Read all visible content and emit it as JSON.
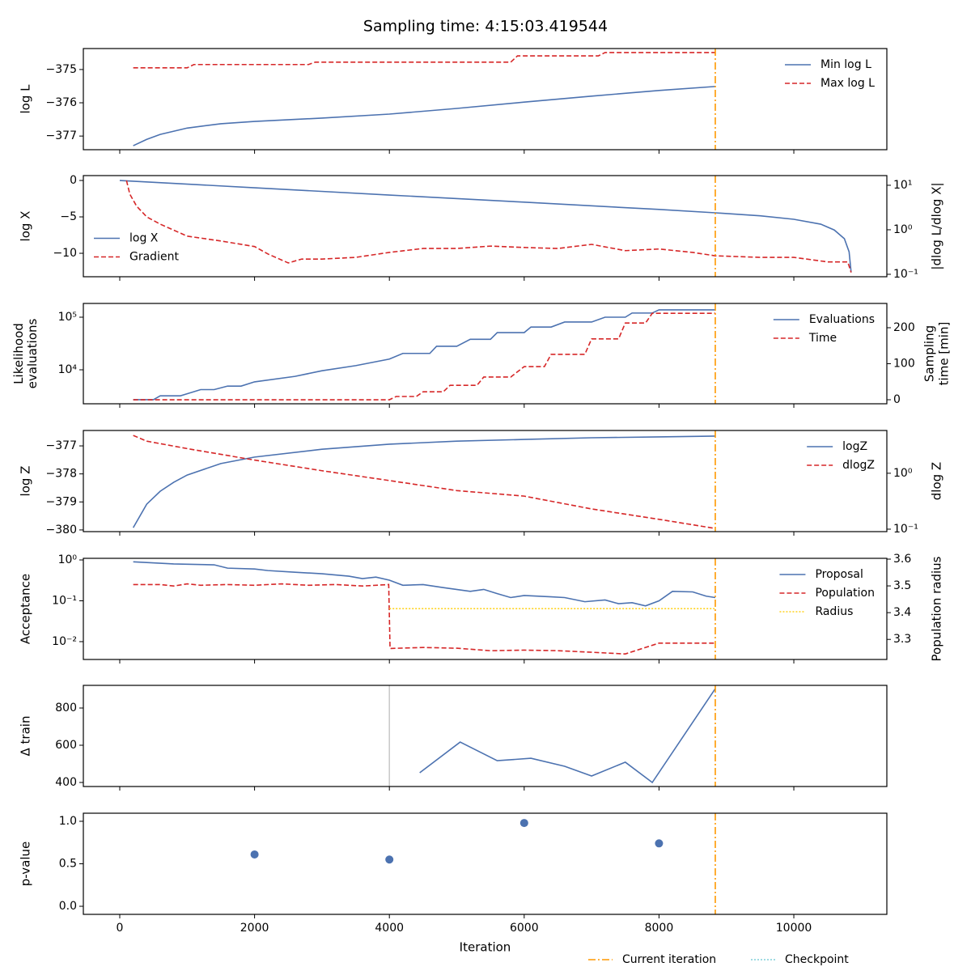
{
  "title": "Sampling time: 4:15:03.419544",
  "current_iteration": 8835,
  "legend": [
    {
      "name": "Current iteration",
      "color": "#ff9900",
      "style": "dashdot"
    },
    {
      "name": "Checkpoint",
      "color": "#7fcfd8",
      "style": "dotted"
    }
  ],
  "chart_data": [
    {
      "type": "line",
      "ylabel": [
        "log L"
      ],
      "xlim": [
        -540,
        11380
      ],
      "xticks": [
        0,
        2000,
        4000,
        6000,
        8000,
        10000
      ],
      "ylim": [
        -377.41,
        -374.37
      ],
      "yticks": [
        {
          "value": -377,
          "label": "−377"
        },
        {
          "value": -376,
          "label": "−376"
        },
        {
          "value": -375,
          "label": "−375"
        }
      ],
      "legend": "upper right",
      "series": [
        {
          "name": "Min log L",
          "color": "#4c72b0",
          "style": "solid",
          "x": [
            200,
            400,
            600,
            1000,
            1500,
            2000,
            3000,
            4000,
            5000,
            6000,
            7000,
            8000,
            8835
          ],
          "values": [
            -377.29,
            -377.1,
            -376.95,
            -376.76,
            -376.63,
            -376.56,
            -376.46,
            -376.34,
            -376.17,
            -375.98,
            -375.8,
            -375.63,
            -375.51
          ]
        },
        {
          "name": "Max log L",
          "color": "#d62728",
          "style": "dashed",
          "x": [
            200,
            1000,
            1100,
            2800,
            2900,
            5800,
            5900,
            7100,
            7200,
            8835
          ],
          "values": [
            -374.95,
            -374.95,
            -374.85,
            -374.85,
            -374.78,
            -374.78,
            -374.59,
            -374.59,
            -374.49,
            -374.49
          ]
        }
      ]
    },
    {
      "type": "line",
      "ylabel": [
        "log X"
      ],
      "y2label": [
        "|dlog L/dlog X|"
      ],
      "xlim": [
        -540,
        11380
      ],
      "xticks": [
        0,
        2000,
        4000,
        6000,
        8000,
        10000
      ],
      "ylim": [
        -13.22,
        0.67
      ],
      "yticks": [
        {
          "value": -10,
          "label": "−10"
        },
        {
          "value": -5,
          "label": "−5"
        },
        0
      ],
      "y2log": true,
      "y2lim": [
        0.0881,
        16.5
      ],
      "y2ticks": [
        {
          "value": 0.1,
          "label": "10⁻¹"
        },
        {
          "value": 1,
          "label": "10⁰"
        },
        {
          "value": 10,
          "label": "10¹"
        }
      ],
      "legend": "center left",
      "series": [
        {
          "name": "log X",
          "color": "#4c72b0",
          "style": "solid",
          "x": [
            0,
            2000,
            4000,
            6000,
            8000,
            8835,
            9500,
            10000,
            10400,
            10600,
            10750,
            10820,
            10850
          ],
          "values": [
            0,
            -1,
            -2,
            -2.98,
            -3.98,
            -4.44,
            -4.85,
            -5.33,
            -6.0,
            -6.8,
            -8.0,
            -9.8,
            -12.6
          ]
        },
        {
          "name": "Gradient",
          "color": "#d62728",
          "style": "dashed",
          "axis": "y2",
          "x": [
            100,
            150,
            250,
            400,
            600,
            1000,
            1500,
            2000,
            2200,
            2500,
            2700,
            3000,
            3500,
            4000,
            4500,
            5000,
            5500,
            6000,
            6500,
            7000,
            7500,
            8000,
            8500,
            8835,
            9500,
            10000,
            10500,
            10800,
            10850
          ],
          "values": [
            12.8,
            6.3,
            3.4,
            1.95,
            1.34,
            0.72,
            0.56,
            0.42,
            0.285,
            0.18,
            0.22,
            0.22,
            0.24,
            0.31,
            0.38,
            0.38,
            0.43,
            0.4,
            0.38,
            0.47,
            0.34,
            0.37,
            0.31,
            0.26,
            0.24,
            0.24,
            0.19,
            0.19,
            0.11
          ]
        }
      ]
    },
    {
      "type": "line",
      "ylabel": [
        "Likelihood",
        "evaluations"
      ],
      "y2label": [
        "Sampling",
        "time [min]"
      ],
      "xlim": [
        -540,
        11380
      ],
      "xticks": [
        0,
        2000,
        4000,
        6000,
        8000,
        10000
      ],
      "ylog": true,
      "ylim": [
        2260,
        182700
      ],
      "yticks": [
        {
          "value": 10000,
          "label": "10⁴"
        },
        {
          "value": 100000,
          "label": "10⁵"
        }
      ],
      "y2lim": [
        -11.2,
        267.4
      ],
      "y2ticks": [
        0,
        100,
        200
      ],
      "legend": "upper right",
      "series": [
        {
          "name": "Evaluations",
          "color": "#4c72b0",
          "style": "solid",
          "x": [
            200,
            500,
            600,
            900,
            1000,
            1200,
            1400,
            1600,
            1800,
            2000,
            2600,
            3000,
            3500,
            4000,
            4200,
            4600,
            4700,
            5000,
            5200,
            5500,
            5600,
            6000,
            6100,
            6400,
            6600,
            7000,
            7200,
            7500,
            7600,
            7900,
            8000,
            8835
          ],
          "values": [
            2700,
            2700,
            3200,
            3200,
            3500,
            4200,
            4200,
            4900,
            4900,
            5900,
            7500,
            9600,
            12000,
            16000,
            20500,
            20500,
            28000,
            28000,
            38000,
            38000,
            51000,
            51000,
            65000,
            65000,
            81000,
            81000,
            100000,
            100000,
            120000,
            120000,
            138000,
            138000
          ]
        },
        {
          "name": "Time",
          "color": "#d62728",
          "style": "dashed",
          "axis": "y2",
          "x": [
            200,
            4000,
            4100,
            4400,
            4500,
            4800,
            4900,
            5300,
            5400,
            5800,
            6000,
            6300,
            6400,
            6900,
            7000,
            7400,
            7500,
            7800,
            7900,
            8835
          ],
          "values": [
            0,
            0,
            9,
            9,
            22,
            22,
            40,
            40,
            63,
            63,
            92,
            92,
            126,
            126,
            169,
            169,
            213,
            213,
            240,
            240
          ]
        }
      ]
    },
    {
      "type": "line",
      "ylabel": [
        "log Z"
      ],
      "y2label": [
        "dlog Z"
      ],
      "xlim": [
        -540,
        11380
      ],
      "xticks": [
        0,
        2000,
        4000,
        6000,
        8000,
        10000
      ],
      "ylim": [
        -380.06,
        -376.45
      ],
      "yticks": [
        {
          "value": -380,
          "label": "−380"
        },
        {
          "value": -379,
          "label": "−379"
        },
        {
          "value": -378,
          "label": "−378"
        },
        {
          "value": -377,
          "label": "−377"
        }
      ],
      "y2log": true,
      "y2lim": [
        0.0904,
        5.82
      ],
      "y2ticks": [
        {
          "value": 0.1,
          "label": "10⁻¹"
        },
        {
          "value": 1,
          "label": "10⁰"
        }
      ],
      "legend": "upper right",
      "series": [
        {
          "name": "logZ",
          "color": "#4c72b0",
          "style": "solid",
          "x": [
            200,
            400,
            600,
            800,
            1000,
            1500,
            2000,
            3000,
            4000,
            5000,
            6000,
            7000,
            8000,
            8835
          ],
          "values": [
            -379.92,
            -379.08,
            -378.62,
            -378.3,
            -378.04,
            -377.63,
            -377.4,
            -377.12,
            -376.94,
            -376.83,
            -376.77,
            -376.71,
            -376.68,
            -376.65
          ]
        },
        {
          "name": "dlogZ",
          "color": "#d62728",
          "style": "dashed",
          "axis": "y2",
          "x": [
            200,
            400,
            1000,
            2000,
            3000,
            4000,
            5000,
            6000,
            7000,
            8000,
            8835
          ],
          "values": [
            4.75,
            3.75,
            2.76,
            1.72,
            1.11,
            0.74,
            0.49,
            0.39,
            0.23,
            0.15,
            0.103
          ]
        }
      ]
    },
    {
      "type": "line",
      "ylabel": [
        "Acceptance"
      ],
      "y2label": [
        "Population radius"
      ],
      "xlim": [
        -540,
        11380
      ],
      "xticks": [
        0,
        2000,
        4000,
        6000,
        8000,
        10000
      ],
      "ylog": true,
      "ylim": [
        0.00366,
        1.096
      ],
      "yticks": [
        {
          "value": 0.01,
          "label": "10⁻²"
        },
        {
          "value": 0.1,
          "label": "10⁻¹"
        },
        {
          "value": 1,
          "label": "10⁰"
        }
      ],
      "y2lim": [
        3.225,
        3.603
      ],
      "y2ticks": [
        3.3,
        3.4,
        3.5,
        3.6
      ],
      "legend": "upper right",
      "series": [
        {
          "name": "Proposal",
          "color": "#4c72b0",
          "style": "solid",
          "x": [
            200,
            800,
            1400,
            1600,
            2000,
            2200,
            2600,
            3000,
            3400,
            3600,
            3800,
            4000,
            4200,
            4500,
            4800,
            5200,
            5400,
            5600,
            5800,
            6000,
            6400,
            6600,
            6900,
            7200,
            7400,
            7600,
            7800,
            8000,
            8200,
            8500,
            8700,
            8835
          ],
          "values": [
            0.9,
            0.8,
            0.76,
            0.63,
            0.6,
            0.55,
            0.5,
            0.46,
            0.4,
            0.35,
            0.38,
            0.32,
            0.24,
            0.25,
            0.21,
            0.17,
            0.19,
            0.15,
            0.12,
            0.135,
            0.125,
            0.12,
            0.095,
            0.105,
            0.085,
            0.09,
            0.075,
            0.1,
            0.17,
            0.165,
            0.13,
            0.12
          ]
        },
        {
          "name": "Population",
          "color": "#d62728",
          "style": "dashed",
          "x": [
            200,
            600,
            800,
            1000,
            1200,
            1600,
            2000,
            2400,
            2800,
            3200,
            3600,
            3990,
            4010,
            4500,
            5000,
            5500,
            6000,
            6500,
            7000,
            7500,
            8000,
            8835
          ],
          "values": [
            0.25,
            0.25,
            0.23,
            0.26,
            0.24,
            0.25,
            0.24,
            0.26,
            0.24,
            0.25,
            0.23,
            0.25,
            0.0068,
            0.0072,
            0.0069,
            0.006,
            0.0062,
            0.006,
            0.0055,
            0.005,
            0.0092,
            0.0092
          ]
        },
        {
          "name": "Radius",
          "color": "#ffd21f",
          "style": "dotted",
          "axis": "y2",
          "x": [
            4000,
            8835
          ],
          "values": [
            3.415,
            3.415
          ]
        }
      ]
    },
    {
      "type": "line",
      "ylabel": [
        "Δ train"
      ],
      "xlim": [
        -540,
        11380
      ],
      "xticks": [
        0,
        2000,
        4000,
        6000,
        8000,
        10000
      ],
      "ylim": [
        378.3,
        921.7
      ],
      "yticks": [
        400,
        600,
        800
      ],
      "vline": 4000,
      "series": [
        {
          "color": "#4c72b0",
          "style": "solid",
          "x": [
            4450,
            5050,
            5600,
            6100,
            6600,
            7000,
            7500,
            7900,
            8835
          ],
          "values": [
            452,
            617,
            517,
            530,
            487,
            435,
            509,
            400,
            904
          ]
        }
      ]
    },
    {
      "type": "scatter",
      "ylabel": [
        "p-value"
      ],
      "xlabel": "Iteration",
      "xlim": [
        -540,
        11380
      ],
      "xticks": [
        0,
        2000,
        4000,
        6000,
        8000,
        10000
      ],
      "ylim": [
        -0.095,
        1.095
      ],
      "yticks": [
        {
          "value": 0,
          "label": "0.0"
        },
        0.5,
        {
          "value": 1,
          "label": "1.0"
        }
      ],
      "series": [
        {
          "color": "#4c72b0",
          "x": [
            2000,
            4000,
            6000,
            8000
          ],
          "values": [
            0.61,
            0.55,
            0.98,
            0.74
          ]
        }
      ]
    }
  ]
}
